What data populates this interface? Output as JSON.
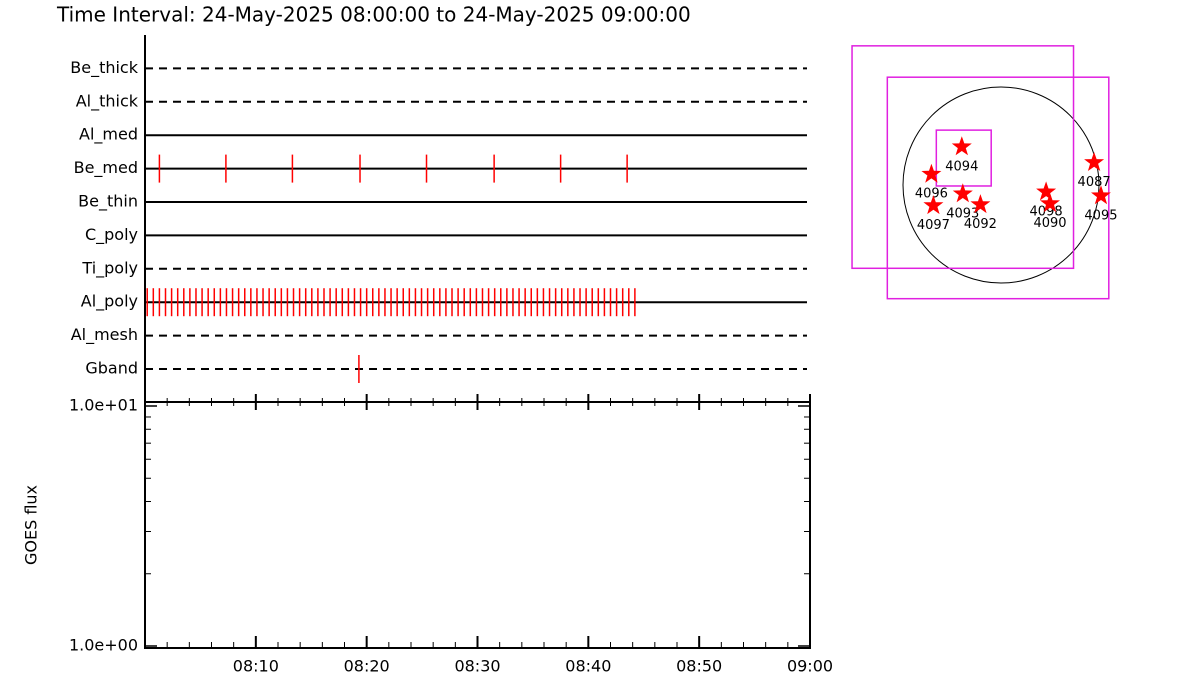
{
  "chart_data": [
    {
      "type": "timeline",
      "title": "Time Interval: 24-May-2025 08:00:00 to 24-May-2025 09:00:00",
      "categories": [
        "Be_thick",
        "Al_thick",
        "Al_med",
        "Be_med",
        "Be_thin",
        "C_poly",
        "Ti_poly",
        "Al_poly",
        "Al_mesh",
        "Gband"
      ],
      "line_styles": [
        "dashed",
        "dashed",
        "solid",
        "solid",
        "solid",
        "solid",
        "dashed",
        "solid",
        "dashed",
        "dashed"
      ],
      "events": [
        [],
        [],
        [],
        [
          1.3,
          7.3,
          13.3,
          19.4,
          25.4,
          31.5,
          37.5,
          43.5
        ],
        [],
        [],
        [],
        [
          0.2,
          0.75,
          1.3,
          1.85,
          2.4,
          2.95,
          3.5,
          4.05,
          4.6,
          5.15,
          5.7,
          6.25,
          6.8,
          7.35,
          7.9,
          8.45,
          9.0,
          9.55,
          10.1,
          10.65,
          11.2,
          11.75,
          12.3,
          12.85,
          13.4,
          13.95,
          14.5,
          15.05,
          15.6,
          16.15,
          16.7,
          17.25,
          17.8,
          18.35,
          18.9,
          19.45,
          20.0,
          20.55,
          21.1,
          21.65,
          22.2,
          22.75,
          23.3,
          23.85,
          24.4,
          24.95,
          25.5,
          26.05,
          26.6,
          27.15,
          27.7,
          28.25,
          28.8,
          29.35,
          29.9,
          30.45,
          31.0,
          31.55,
          32.1,
          32.65,
          33.2,
          33.75,
          34.3,
          34.85,
          35.4,
          35.95,
          36.5,
          37.05,
          37.6,
          38.15,
          38.7,
          39.25,
          39.8,
          40.35,
          40.9,
          41.45,
          42.0,
          42.55,
          43.1,
          43.65,
          44.2
        ],
        [],
        [
          19.3
        ]
      ],
      "color": "#ff0000",
      "xlim": [
        0,
        60
      ]
    },
    {
      "type": "line",
      "ylabel": "GOES flux",
      "log_scale": true,
      "ylim": [
        1,
        10
      ],
      "yticks": [
        {
          "value": 1,
          "label": "1.0e+00"
        },
        {
          "value": 10,
          "label": "1.0e+01"
        }
      ],
      "xlim": [
        0,
        60
      ],
      "xticks": [
        {
          "value": 10,
          "label": "08:10"
        },
        {
          "value": 20,
          "label": "08:20"
        },
        {
          "value": 30,
          "label": "08:30"
        },
        {
          "value": 40,
          "label": "08:40"
        },
        {
          "value": 50,
          "label": "08:50"
        },
        {
          "value": 60,
          "label": "09:00"
        }
      ]
    },
    {
      "type": "scatter",
      "labels": [
        "4094",
        "4096",
        "4093",
        "4097",
        "4092",
        "4098",
        "4090",
        "4087",
        "4095"
      ],
      "x": [
        -0.4,
        -0.71,
        -0.39,
        -0.69,
        -0.21,
        0.46,
        0.5,
        0.95,
        1.02
      ],
      "y": [
        0.39,
        0.11,
        -0.09,
        -0.21,
        -0.2,
        -0.07,
        -0.19,
        0.23,
        -0.11
      ],
      "color": "#ff0000",
      "boxes": [
        {
          "x": [
            -1.52,
            0.74
          ],
          "y": [
            -0.85,
            1.42
          ]
        },
        {
          "x": [
            -1.16,
            1.1
          ],
          "y": [
            -1.16,
            1.1
          ]
        },
        {
          "x": [
            -0.66,
            -0.1
          ],
          "y": [
            -0.01,
            0.56
          ]
        }
      ],
      "box_color": "#e020e0"
    }
  ]
}
